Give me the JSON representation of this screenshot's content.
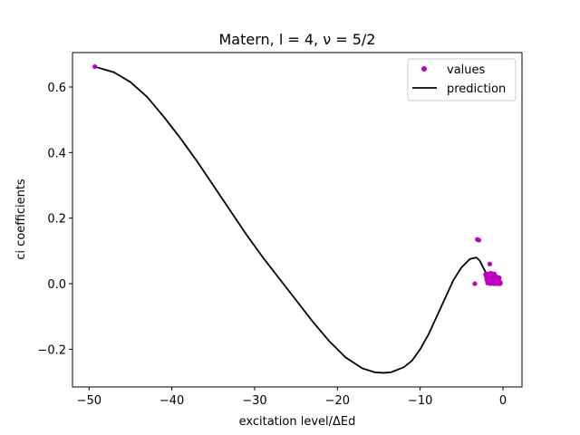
{
  "chart_data": {
    "type": "scatter",
    "title": "Matern, l = 4, ν = 5/2",
    "xlabel": "excitation level/ΔEd",
    "ylabel": "ci coefficients",
    "xlim": [
      -52,
      2.3
    ],
    "ylim": [
      -0.315,
      0.705
    ],
    "xticks": [
      -50,
      -40,
      -30,
      -20,
      -10,
      0
    ],
    "xtick_labels": [
      "−50",
      "−40",
      "−30",
      "−20",
      "−10",
      "0"
    ],
    "yticks": [
      -0.2,
      0.0,
      0.2,
      0.4,
      0.6
    ],
    "ytick_labels": [
      "−0.2",
      "0.0",
      "0.2",
      "0.4",
      "0.6"
    ],
    "grid": false,
    "legend_position": "top-right",
    "series": [
      {
        "name": "values",
        "kind": "scatter",
        "color": "#bf00bf",
        "points": [
          [
            -49.3,
            0.662
          ],
          [
            -3.1,
            0.135
          ],
          [
            -2.9,
            0.133
          ],
          [
            -3.4,
            0.0
          ],
          [
            -1.6,
            0.06
          ],
          [
            -2.0,
            0.02
          ],
          [
            -1.9,
            0.01
          ],
          [
            -1.8,
            0.03
          ],
          [
            -1.7,
            0.005
          ],
          [
            -1.6,
            0.015
          ],
          [
            -1.5,
            0.0
          ],
          [
            -1.4,
            0.02
          ],
          [
            -1.35,
            0.008
          ],
          [
            -1.3,
            0.025
          ],
          [
            -1.25,
            0.003
          ],
          [
            -1.2,
            0.012
          ],
          [
            -1.15,
            0.018
          ],
          [
            -1.1,
            0.0
          ],
          [
            -1.05,
            0.03
          ],
          [
            -1.0,
            0.01
          ],
          [
            -0.95,
            0.005
          ],
          [
            -0.9,
            0.022
          ],
          [
            -0.85,
            0.0
          ],
          [
            -0.8,
            0.015
          ],
          [
            -0.75,
            0.008
          ],
          [
            -0.7,
            0.02
          ],
          [
            -0.65,
            0.002
          ],
          [
            -0.6,
            0.012
          ],
          [
            -0.55,
            0.005
          ],
          [
            -0.5,
            0.0
          ],
          [
            -0.45,
            0.018
          ],
          [
            -0.4,
            0.006
          ],
          [
            -0.35,
            0.0
          ],
          [
            -0.3,
            0.002
          ],
          [
            -2.1,
            0.028
          ],
          [
            -1.95,
            0.012
          ],
          [
            -1.45,
            0.032
          ],
          [
            -1.85,
            0.002
          ]
        ]
      },
      {
        "name": "prediction",
        "kind": "line",
        "color": "#000000",
        "points": [
          [
            -49.3,
            0.662
          ],
          [
            -47,
            0.645
          ],
          [
            -45,
            0.615
          ],
          [
            -43,
            0.57
          ],
          [
            -41,
            0.51
          ],
          [
            -39,
            0.445
          ],
          [
            -37,
            0.375
          ],
          [
            -35,
            0.3
          ],
          [
            -33,
            0.225
          ],
          [
            -31,
            0.15
          ],
          [
            -29,
            0.08
          ],
          [
            -27,
            0.015
          ],
          [
            -25,
            -0.05
          ],
          [
            -23,
            -0.115
          ],
          [
            -21,
            -0.175
          ],
          [
            -19,
            -0.225
          ],
          [
            -17,
            -0.258
          ],
          [
            -15.5,
            -0.27
          ],
          [
            -14.5,
            -0.272
          ],
          [
            -13.5,
            -0.27
          ],
          [
            -12,
            -0.255
          ],
          [
            -11,
            -0.235
          ],
          [
            -10,
            -0.2
          ],
          [
            -9,
            -0.155
          ],
          [
            -8,
            -0.1
          ],
          [
            -7,
            -0.045
          ],
          [
            -6,
            0.01
          ],
          [
            -5,
            0.05
          ],
          [
            -4,
            0.075
          ],
          [
            -3.2,
            0.08
          ],
          [
            -2.8,
            0.07
          ],
          [
            -2.4,
            0.05
          ],
          [
            -2.0,
            0.03
          ],
          [
            -1.6,
            0.018
          ],
          [
            -1.2,
            0.01
          ],
          [
            -0.8,
            0.005
          ],
          [
            -0.3,
            0.003
          ]
        ]
      }
    ]
  }
}
